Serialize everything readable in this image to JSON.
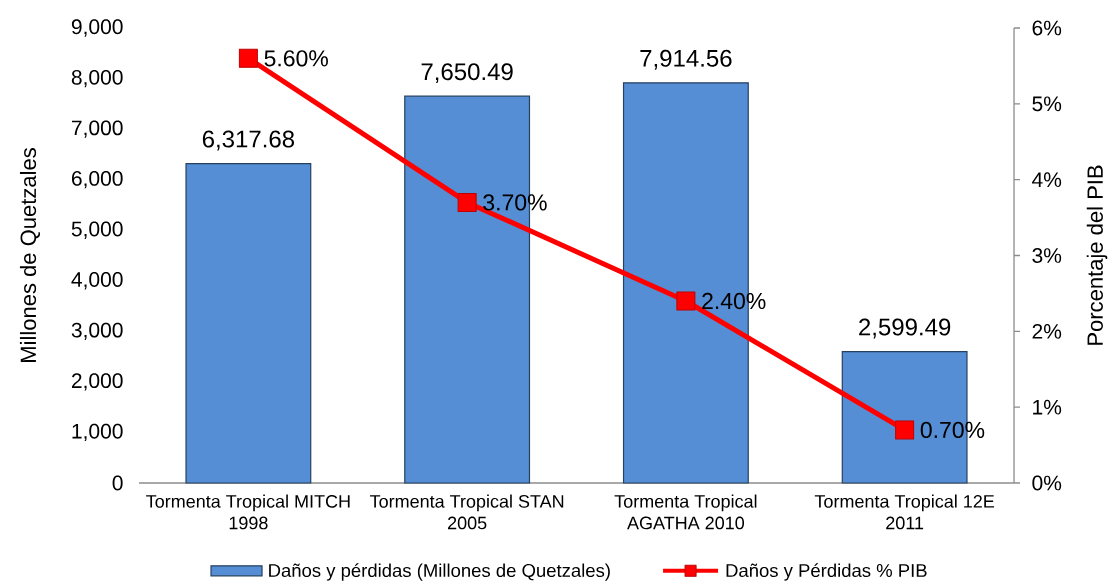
{
  "chart_data": {
    "type": "bar",
    "categories": [
      "Tormenta Tropical MITCH 1998",
      "Tormenta Tropical STAN 2005",
      "Tormenta Tropical AGATHA 2010",
      "Tormenta Tropical 12E 2011"
    ],
    "ylabel": "Millones de Quetzales",
    "y2label": "Porcentaje del PIB",
    "series": [
      {
        "name": "Daños y pérdidas (Millones de Quetzales)",
        "color": "#558ed5",
        "values": [
          6317.68,
          7650.49,
          7914.56,
          2599.49
        ],
        "value_labels": [
          "6,317.68",
          "7,650.49",
          "7,914.56",
          "2,599.49"
        ]
      },
      {
        "name": "Daños y Pérdidas % PIB",
        "type": "line",
        "axis": "y2",
        "color": "#ff0000",
        "marker": "square",
        "line_style": "solid",
        "values": [
          5.6,
          3.7,
          2.4,
          0.7
        ],
        "value_labels": [
          "5.60%",
          "3.70%",
          "2.40%",
          "0.70%"
        ]
      }
    ],
    "ylim": [
      0,
      9000
    ],
    "yticks": [
      0,
      {
        "value": 1000,
        "label": "1,000"
      },
      {
        "value": 2000,
        "label": "2,000"
      },
      {
        "value": 3000,
        "label": "3,000"
      },
      {
        "value": 4000,
        "label": "4,000"
      },
      {
        "value": 5000,
        "label": "5,000"
      },
      {
        "value": 6000,
        "label": "6,000"
      },
      {
        "value": 7000,
        "label": "7,000"
      },
      {
        "value": 8000,
        "label": "8,000"
      },
      {
        "value": 9000,
        "label": "9,000"
      }
    ],
    "y2lim": [
      0,
      6
    ],
    "y2ticks": [
      {
        "value": 0,
        "label": "0%"
      },
      {
        "value": 1,
        "label": "1%"
      },
      {
        "value": 2,
        "label": "2%"
      },
      {
        "value": 3,
        "label": "3%"
      },
      {
        "value": 4,
        "label": "4%"
      },
      {
        "value": 5,
        "label": "5%"
      },
      {
        "value": 6,
        "label": "6%"
      }
    ],
    "legend": "bottom"
  }
}
